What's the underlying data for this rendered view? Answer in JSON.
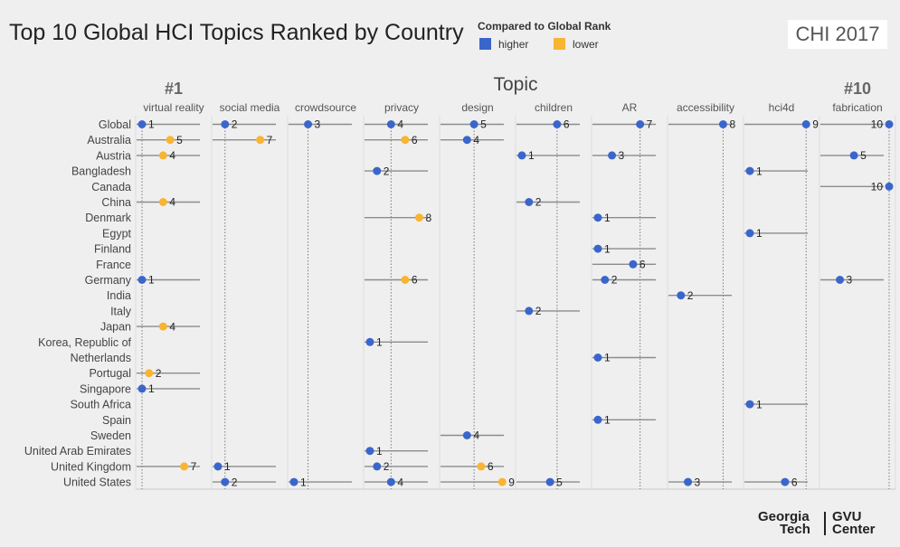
{
  "header": {
    "title": "Top 10 Global HCI Topics Ranked by Country",
    "badge": "CHI 2017"
  },
  "legend": {
    "title": "Compared to Global Rank",
    "items": [
      {
        "label": "higher",
        "color": "#3a66cc"
      },
      {
        "label": "lower",
        "color": "#f9b531"
      }
    ]
  },
  "logo": {
    "line1a": "Georgia",
    "line1b": "GVU",
    "line2a": "Tech",
    "line2b": "Center"
  },
  "colors": {
    "higher": "#3a66cc",
    "lower": "#f9b531",
    "range": "#8c8c8c",
    "guide": "#7a7a7a"
  },
  "chart_data": {
    "type": "scatter",
    "title": "Top 10 Global HCI Topics Ranked by Country",
    "column_header": "Topic",
    "end_labels": {
      "left": "#1",
      "right": "#10"
    },
    "topics": [
      "virtual reality",
      "social media",
      "crowdsource",
      "privacy",
      "design",
      "children",
      "AR",
      "accessibility",
      "hci4d",
      "fabrication"
    ],
    "countries": [
      "Global",
      "Australia",
      "Austria",
      "Bangladesh",
      "Canada",
      "China",
      "Denmark",
      "Egypt",
      "Finland",
      "France",
      "Germany",
      "India",
      "Italy",
      "Japan",
      "Korea, Republic of",
      "Netherlands",
      "Portugal",
      "Singapore",
      "South Africa",
      "Spain",
      "Sweden",
      "United Arab Emirates",
      "United Kingdom",
      "United States"
    ],
    "x_range": [
      1,
      10
    ],
    "points": [
      {
        "country": "Global",
        "topic": "virtual reality",
        "rank": 1
      },
      {
        "country": "Global",
        "topic": "social media",
        "rank": 2
      },
      {
        "country": "Global",
        "topic": "crowdsource",
        "rank": 3
      },
      {
        "country": "Global",
        "topic": "privacy",
        "rank": 4
      },
      {
        "country": "Global",
        "topic": "design",
        "rank": 5
      },
      {
        "country": "Global",
        "topic": "children",
        "rank": 6
      },
      {
        "country": "Global",
        "topic": "AR",
        "rank": 7
      },
      {
        "country": "Global",
        "topic": "accessibility",
        "rank": 8
      },
      {
        "country": "Global",
        "topic": "hci4d",
        "rank": 9
      },
      {
        "country": "Global",
        "topic": "fabrication",
        "rank": 10
      },
      {
        "country": "Australia",
        "topic": "virtual reality",
        "rank": 5,
        "cmp": "lower"
      },
      {
        "country": "Australia",
        "topic": "social media",
        "rank": 7,
        "cmp": "lower"
      },
      {
        "country": "Australia",
        "topic": "privacy",
        "rank": 6,
        "cmp": "lower"
      },
      {
        "country": "Australia",
        "topic": "design",
        "rank": 4,
        "cmp": "higher"
      },
      {
        "country": "Austria",
        "topic": "virtual reality",
        "rank": 4,
        "cmp": "lower"
      },
      {
        "country": "Austria",
        "topic": "children",
        "rank": 1,
        "cmp": "higher"
      },
      {
        "country": "Austria",
        "topic": "AR",
        "rank": 3,
        "cmp": "higher"
      },
      {
        "country": "Austria",
        "topic": "fabrication",
        "rank": 5,
        "cmp": "higher"
      },
      {
        "country": "Bangladesh",
        "topic": "privacy",
        "rank": 2,
        "cmp": "higher"
      },
      {
        "country": "Bangladesh",
        "topic": "hci4d",
        "rank": 1,
        "cmp": "higher"
      },
      {
        "country": "Canada",
        "topic": "fabrication",
        "rank": 10,
        "cmp": "higher"
      },
      {
        "country": "China",
        "topic": "virtual reality",
        "rank": 4,
        "cmp": "lower"
      },
      {
        "country": "China",
        "topic": "children",
        "rank": 2,
        "cmp": "higher"
      },
      {
        "country": "Denmark",
        "topic": "privacy",
        "rank": 8,
        "cmp": "lower"
      },
      {
        "country": "Denmark",
        "topic": "AR",
        "rank": 1,
        "cmp": "higher"
      },
      {
        "country": "Egypt",
        "topic": "hci4d",
        "rank": 1,
        "cmp": "higher"
      },
      {
        "country": "Finland",
        "topic": "AR",
        "rank": 1,
        "cmp": "higher"
      },
      {
        "country": "France",
        "topic": "AR",
        "rank": 6,
        "cmp": "higher"
      },
      {
        "country": "Germany",
        "topic": "virtual reality",
        "rank": 1,
        "cmp": "higher"
      },
      {
        "country": "Germany",
        "topic": "privacy",
        "rank": 6,
        "cmp": "lower"
      },
      {
        "country": "Germany",
        "topic": "AR",
        "rank": 2,
        "cmp": "higher"
      },
      {
        "country": "Germany",
        "topic": "fabrication",
        "rank": 3,
        "cmp": "higher"
      },
      {
        "country": "India",
        "topic": "accessibility",
        "rank": 2,
        "cmp": "higher"
      },
      {
        "country": "Italy",
        "topic": "children",
        "rank": 2,
        "cmp": "higher"
      },
      {
        "country": "Japan",
        "topic": "virtual reality",
        "rank": 4,
        "cmp": "lower"
      },
      {
        "country": "Korea, Republic of",
        "topic": "privacy",
        "rank": 1,
        "cmp": "higher"
      },
      {
        "country": "Netherlands",
        "topic": "AR",
        "rank": 1,
        "cmp": "higher"
      },
      {
        "country": "Portugal",
        "topic": "virtual reality",
        "rank": 2,
        "cmp": "lower"
      },
      {
        "country": "Singapore",
        "topic": "virtual reality",
        "rank": 1,
        "cmp": "higher"
      },
      {
        "country": "South Africa",
        "topic": "hci4d",
        "rank": 1,
        "cmp": "higher"
      },
      {
        "country": "Spain",
        "topic": "AR",
        "rank": 1,
        "cmp": "higher"
      },
      {
        "country": "Sweden",
        "topic": "design",
        "rank": 4,
        "cmp": "higher"
      },
      {
        "country": "United Arab Emirates",
        "topic": "privacy",
        "rank": 1,
        "cmp": "higher"
      },
      {
        "country": "United Kingdom",
        "topic": "virtual reality",
        "rank": 7,
        "cmp": "lower"
      },
      {
        "country": "United Kingdom",
        "topic": "social media",
        "rank": 1,
        "cmp": "higher"
      },
      {
        "country": "United Kingdom",
        "topic": "privacy",
        "rank": 2,
        "cmp": "higher"
      },
      {
        "country": "United Kingdom",
        "topic": "design",
        "rank": 6,
        "cmp": "lower"
      },
      {
        "country": "United States",
        "topic": "social media",
        "rank": 2,
        "cmp": "higher"
      },
      {
        "country": "United States",
        "topic": "crowdsource",
        "rank": 1,
        "cmp": "higher"
      },
      {
        "country": "United States",
        "topic": "privacy",
        "rank": 4,
        "cmp": "higher"
      },
      {
        "country": "United States",
        "topic": "design",
        "rank": 9,
        "cmp": "lower"
      },
      {
        "country": "United States",
        "topic": "children",
        "rank": 5,
        "cmp": "higher"
      },
      {
        "country": "United States",
        "topic": "accessibility",
        "rank": 3,
        "cmp": "higher"
      },
      {
        "country": "United States",
        "topic": "hci4d",
        "rank": 6,
        "cmp": "higher"
      }
    ]
  }
}
